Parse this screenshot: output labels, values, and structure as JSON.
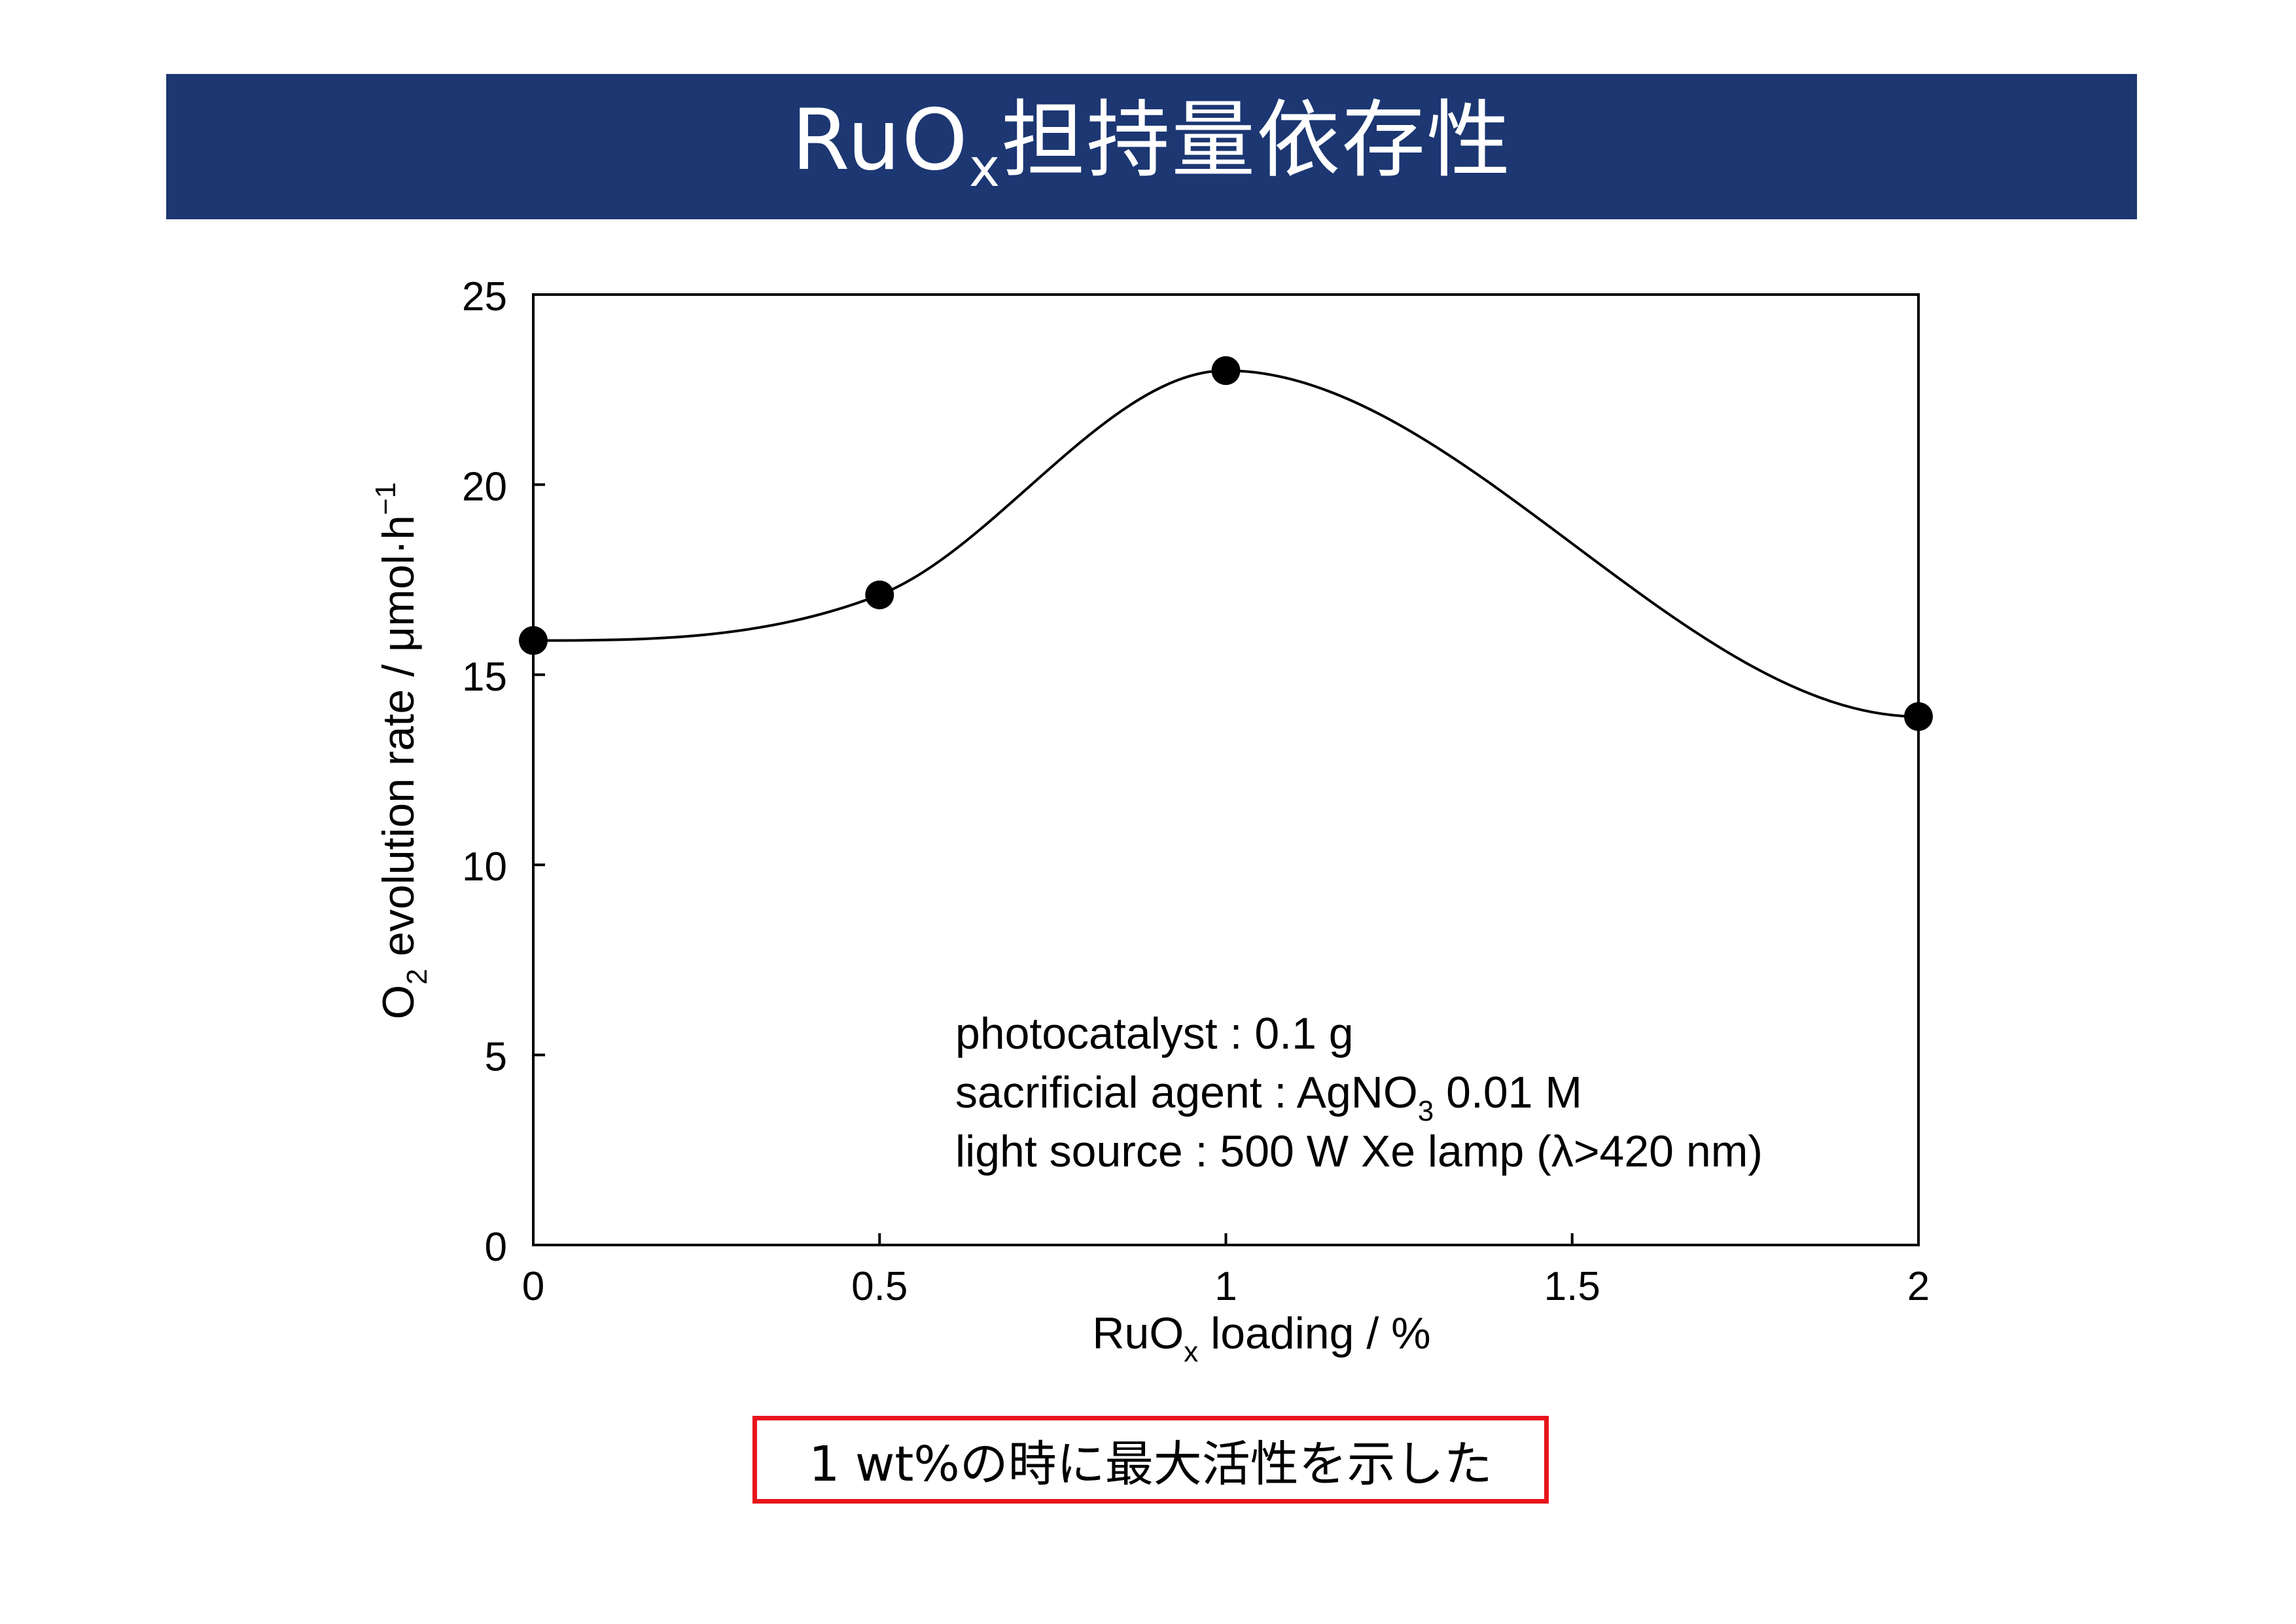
{
  "slide": {
    "title_main": "RuO",
    "title_sub": "x",
    "title_rest": "担持量依存性",
    "conclusion": "1 wt%の時に最大活性を示した"
  },
  "colors": {
    "title_bar": "#1c3772",
    "title_text": "#ffffff",
    "conclusion_border": "#e8141c",
    "data_marker": "#000000",
    "line": "#000000"
  },
  "chart_data": {
    "type": "line",
    "x": [
      0,
      0.5,
      1,
      2
    ],
    "series": [
      {
        "values": [
          15.9,
          17.1,
          23.0,
          13.9
        ]
      }
    ],
    "smoothed": true,
    "markers": "filled-circle",
    "xlabel_main": "RuO",
    "xlabel_sub": "x",
    "xlabel_rest": " loading / %",
    "ylabel_pre": "O",
    "ylabel_sub": "2",
    "ylabel_mid": " evolution rate / μmol·h",
    "ylabel_sup": "−1",
    "xlim": [
      0,
      2
    ],
    "ylim": [
      0,
      25
    ],
    "xticks": [
      0,
      0.5,
      1,
      1.5,
      2
    ],
    "xtick_labels": [
      "0",
      "0.5",
      "1",
      "1.5",
      "2"
    ],
    "yticks": [
      0,
      5,
      10,
      15,
      20,
      25
    ],
    "ytick_labels": [
      "0",
      "5",
      "10",
      "15",
      "20",
      "25"
    ],
    "grid": false,
    "annotations": {
      "line1": "photocatalyst : 0.1 g",
      "line2_pre": "sacrificial agent : AgNO",
      "line2_sub": "3",
      "line2_post": " 0.01 M",
      "line3": "light  source : 500 W  Xe lamp (λ>420 nm)"
    }
  }
}
